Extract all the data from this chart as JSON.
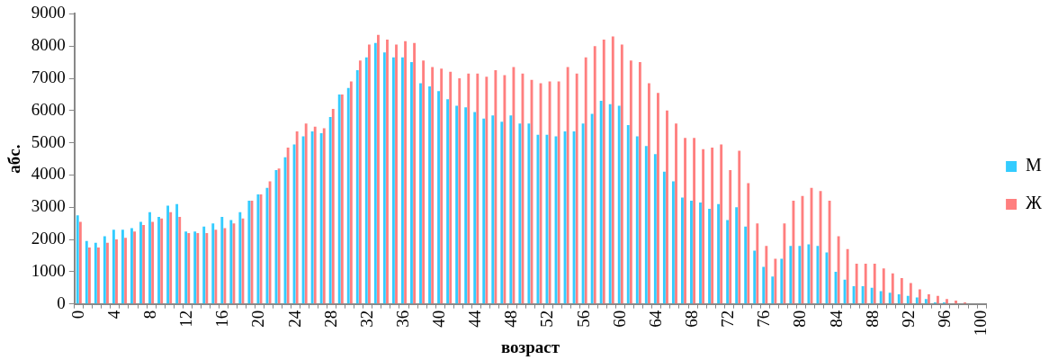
{
  "chart_data": {
    "type": "bar",
    "xlabel": "возраст",
    "ylabel": "абс.",
    "categories": [
      "0",
      null,
      null,
      null,
      "4",
      null,
      null,
      null,
      "8",
      null,
      null,
      null,
      "12",
      null,
      null,
      null,
      "16",
      null,
      null,
      null,
      "20",
      null,
      null,
      null,
      "24",
      null,
      null,
      null,
      "28",
      null,
      null,
      null,
      "32",
      null,
      null,
      null,
      "36",
      null,
      null,
      null,
      "40",
      null,
      null,
      null,
      "44",
      null,
      null,
      null,
      "48",
      null,
      null,
      null,
      "52",
      null,
      null,
      null,
      "56",
      null,
      null,
      null,
      "60",
      null,
      null,
      null,
      "64",
      null,
      null,
      null,
      "68",
      null,
      null,
      null,
      "72",
      null,
      null,
      null,
      "76",
      null,
      null,
      null,
      "80",
      null,
      null,
      null,
      "84",
      null,
      null,
      null,
      "88",
      null,
      null,
      null,
      "92",
      null,
      null,
      null,
      "96",
      null,
      null,
      null,
      "100"
    ],
    "series": [
      {
        "name": "М",
        "color": "#33ccff",
        "values": [
          2750,
          1950,
          1900,
          2100,
          2300,
          2300,
          2350,
          2550,
          2850,
          2700,
          3050,
          3100,
          2250,
          2250,
          2400,
          2500,
          2700,
          2600,
          2850,
          3200,
          3400,
          3600,
          4150,
          4550,
          4950,
          5200,
          5350,
          5300,
          5800,
          6500,
          6700,
          7250,
          7650,
          8100,
          7800,
          7650,
          7650,
          7500,
          6850,
          6750,
          6600,
          6350,
          6150,
          6100,
          5950,
          5750,
          5850,
          5650,
          5850,
          5600,
          5600,
          5250,
          5250,
          5200,
          5350,
          5350,
          5600,
          5900,
          6300,
          6200,
          6150,
          5550,
          5200,
          4900,
          4650,
          4100,
          3800,
          3300,
          3200,
          3150,
          2950,
          3100,
          2600,
          3000,
          2400,
          1650,
          1150,
          850,
          1400,
          1800,
          1800,
          1850,
          1800,
          1600,
          1000,
          750,
          550,
          550,
          500,
          400,
          350,
          300,
          250,
          200,
          150,
          50,
          50,
          0,
          0,
          0,
          0
        ]
      },
      {
        "name": "Ж",
        "color": "#ff7f7f",
        "values": [
          2550,
          1750,
          1750,
          1900,
          2000,
          2050,
          2250,
          2450,
          2550,
          2650,
          2850,
          2700,
          2200,
          2200,
          2200,
          2300,
          2350,
          2500,
          2650,
          3200,
          3400,
          3800,
          4200,
          4850,
          5350,
          5600,
          5500,
          5450,
          6050,
          6500,
          6900,
          7550,
          8050,
          8350,
          8200,
          8050,
          8150,
          8100,
          7550,
          7350,
          7300,
          7200,
          7000,
          7150,
          7150,
          7050,
          7250,
          7100,
          7350,
          7150,
          6950,
          6850,
          6900,
          6900,
          7350,
          7150,
          7650,
          8000,
          8200,
          8300,
          8050,
          7550,
          7500,
          6850,
          6550,
          6000,
          5600,
          5150,
          5150,
          4800,
          4850,
          4950,
          4150,
          4750,
          3750,
          2500,
          1800,
          1400,
          2500,
          3200,
          3350,
          3600,
          3500,
          3200,
          2100,
          1700,
          1250,
          1250,
          1250,
          1100,
          950,
          800,
          650,
          450,
          300,
          250,
          150,
          100,
          50,
          0,
          0
        ]
      }
    ],
    "ylim": [
      0,
      9000
    ],
    "yticks": [
      0,
      1000,
      2000,
      3000,
      4000,
      5000,
      6000,
      7000,
      8000,
      9000
    ],
    "legend": "right"
  }
}
